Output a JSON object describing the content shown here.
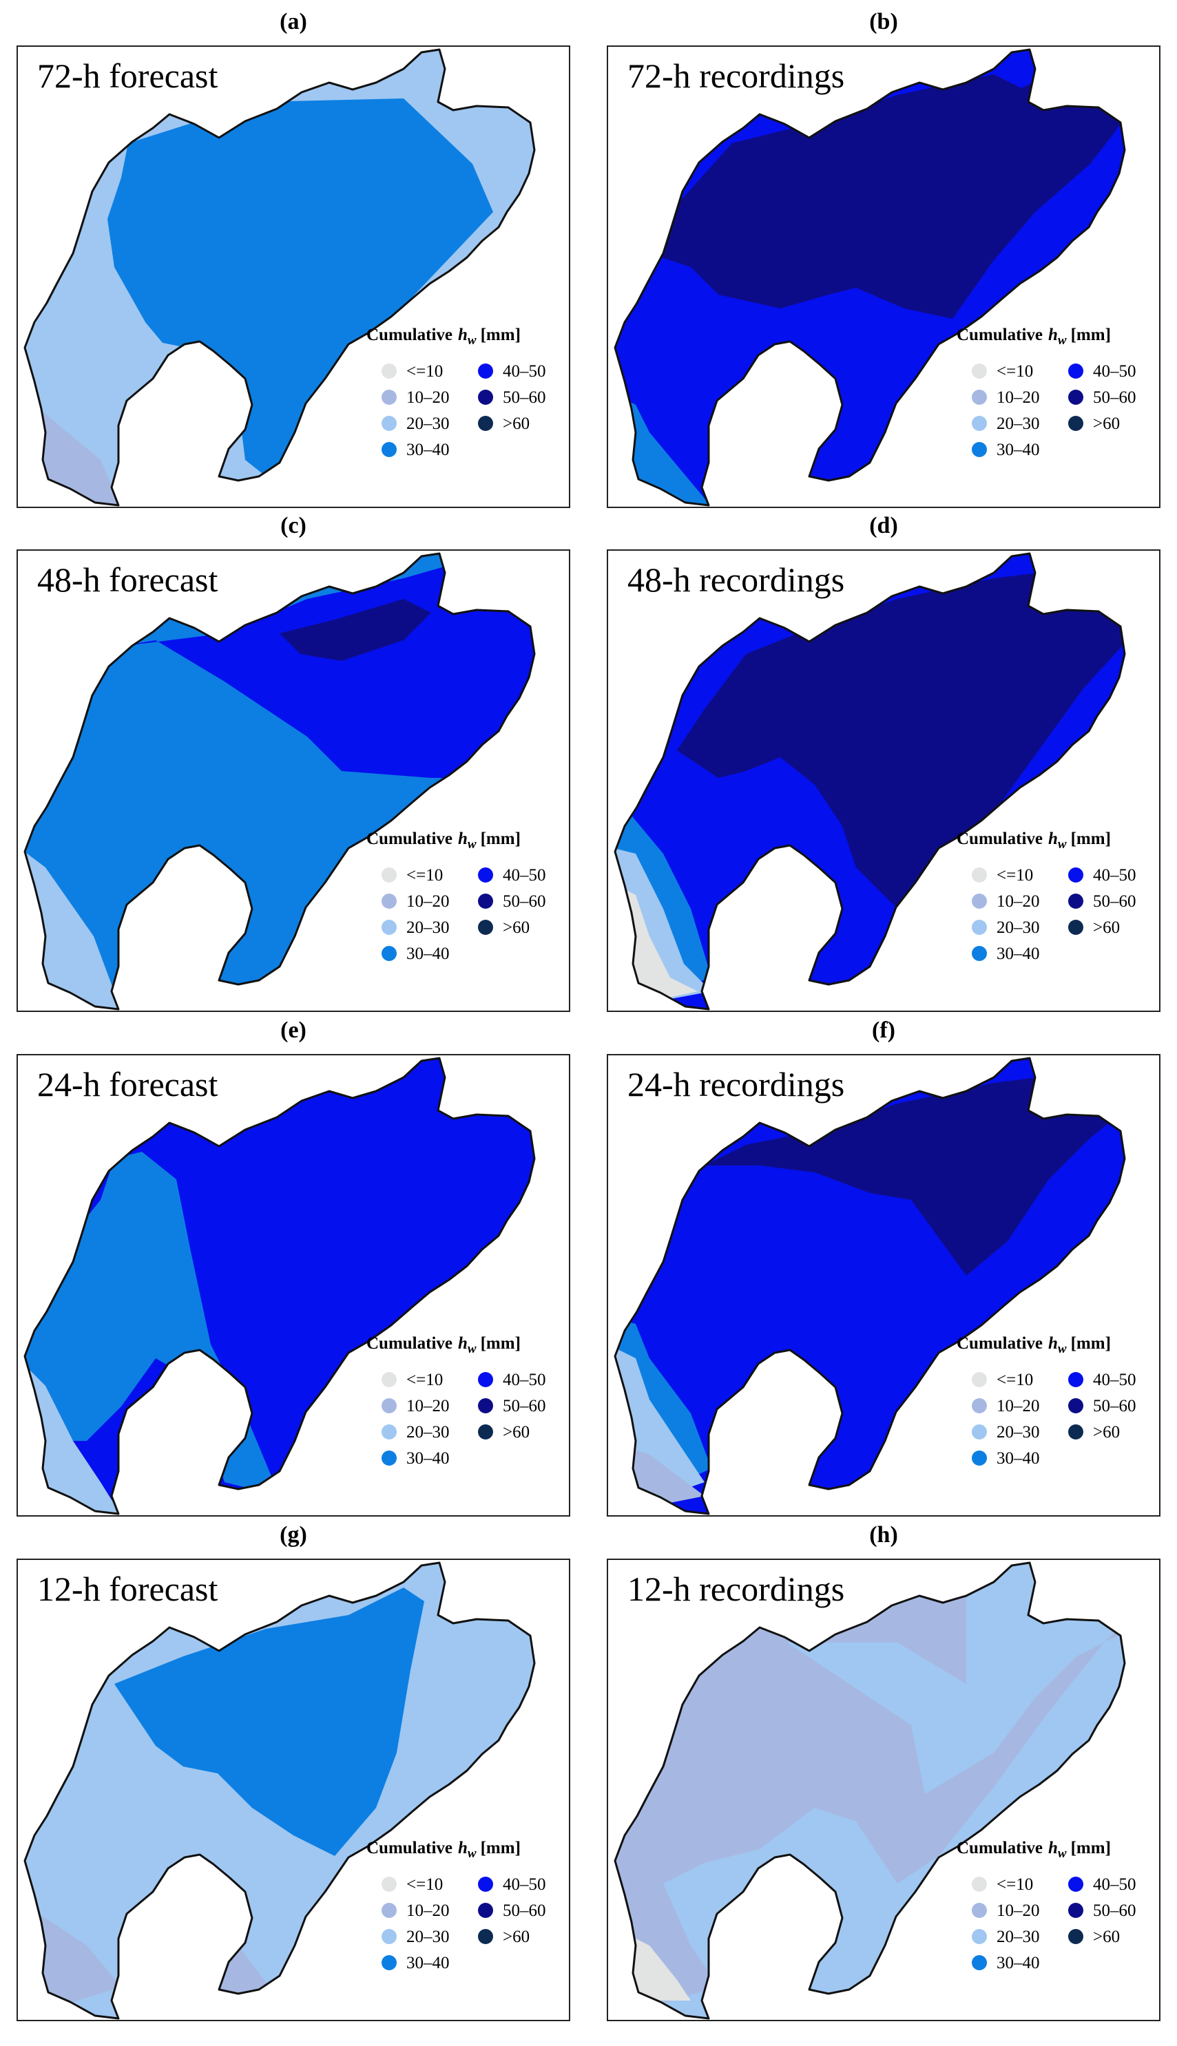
{
  "legend": {
    "title": "Cumulative",
    "var": "h",
    "sub": "w",
    "unit": "[mm]",
    "classes": [
      {
        "label": "<=10",
        "color": "#e2e4e3"
      },
      {
        "label": "10–20",
        "color": "#a6b8e2"
      },
      {
        "label": "20–30",
        "color": "#9fc7f1"
      },
      {
        "label": "30–40",
        "color": "#0d7fe2"
      },
      {
        "label": "40–50",
        "color": "#0510ee"
      },
      {
        "label": "50–60",
        "color": "#0d0c88"
      },
      {
        "label": ">60",
        "color": "#0d2a52"
      }
    ]
  },
  "panels": [
    {
      "letter": "(a)",
      "title": "72-h forecast"
    },
    {
      "letter": "(b)",
      "title": "72-h recordings"
    },
    {
      "letter": "(c)",
      "title": "48-h forecast"
    },
    {
      "letter": "(d)",
      "title": "48-h recordings"
    },
    {
      "letter": "(e)",
      "title": "24-h forecast"
    },
    {
      "letter": "(f)",
      "title": "24-h recordings"
    },
    {
      "letter": "(g)",
      "title": "12-h forecast"
    },
    {
      "letter": "(h)",
      "title": "12-h recordings"
    }
  ]
}
